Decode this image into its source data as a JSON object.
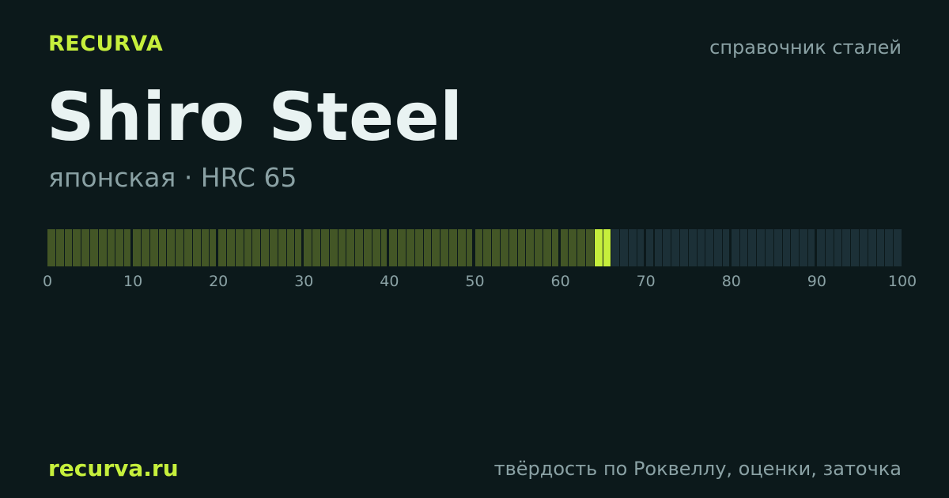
{
  "brand": "RECURVA",
  "tagline": "справочник сталей",
  "title": "Shiro Steel",
  "subtitle": "японская · HRC 65",
  "hardness_scale": {
    "value": 65,
    "min": 0,
    "max": 100,
    "tick_labels": [
      "0",
      "10",
      "20",
      "30",
      "40",
      "50",
      "60",
      "70",
      "80",
      "90",
      "100"
    ],
    "colors": {
      "filled": "#435626",
      "highlight": "#c6ef3c",
      "empty": "#1c3037",
      "separator": "#0c191b"
    }
  },
  "footer": {
    "domain": "recurva.ru",
    "note": "твёрдость по Роквеллу, оценки, заточка"
  }
}
